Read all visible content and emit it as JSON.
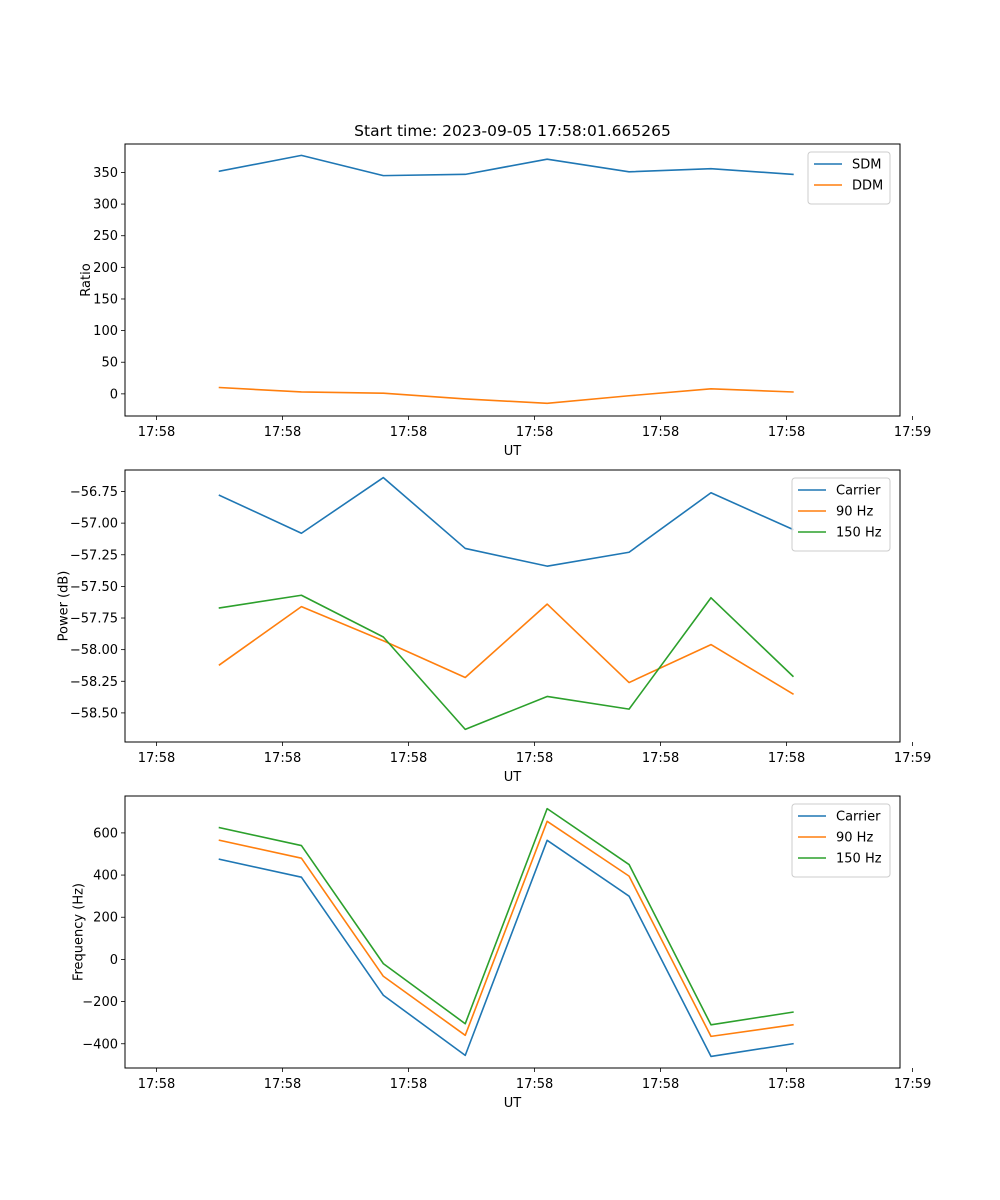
{
  "chart_data": [
    {
      "type": "line",
      "title": "Start time: 2023-09-05 17:58:01.665265",
      "xlabel": "UT",
      "ylabel": "Ratio",
      "xticks": [
        "17:58",
        "17:58",
        "17:58",
        "17:58",
        "17:58",
        "17:58",
        "17:59"
      ],
      "xlim": [
        -0.25,
        5.9
      ],
      "ylim": [
        -35,
        395
      ],
      "yticks": [
        "0",
        "50",
        "100",
        "150",
        "200",
        "250",
        "300",
        "350"
      ],
      "ytick_values": [
        0,
        50,
        100,
        150,
        200,
        250,
        300,
        350
      ],
      "x": [
        0.5,
        1.15,
        1.8,
        2.45,
        3.1,
        3.75,
        4.4,
        5.05
      ],
      "legend_position": "top-right",
      "series": [
        {
          "name": "SDM",
          "color": "#1f77b4",
          "values": [
            352,
            377,
            345,
            347,
            371,
            351,
            356,
            347
          ]
        },
        {
          "name": "DDM",
          "color": "#ff7f0e",
          "values": [
            10,
            3,
            1,
            -8,
            -15,
            -3,
            8,
            3
          ]
        }
      ]
    },
    {
      "type": "line",
      "title": "",
      "xlabel": "UT",
      "ylabel": "Power (dB)",
      "xticks": [
        "17:58",
        "17:58",
        "17:58",
        "17:58",
        "17:58",
        "17:58",
        "17:59"
      ],
      "xlim": [
        -0.25,
        5.9
      ],
      "ylim": [
        -58.73,
        -56.58
      ],
      "yticks": [
        "−58.50",
        "−58.25",
        "−58.00",
        "−57.75",
        "−57.50",
        "−57.25",
        "−57.00",
        "−56.75"
      ],
      "ytick_values": [
        -58.5,
        -58.25,
        -58.0,
        -57.75,
        -57.5,
        -57.25,
        -57.0,
        -56.75
      ],
      "x": [
        0.5,
        1.15,
        1.8,
        2.45,
        3.1,
        3.75,
        4.4,
        5.05
      ],
      "legend_position": "top-right",
      "series": [
        {
          "name": "Carrier",
          "color": "#1f77b4",
          "values": [
            -56.78,
            -57.08,
            -56.64,
            -57.2,
            -57.34,
            -57.23,
            -56.76,
            -57.05
          ]
        },
        {
          "name": "90 Hz",
          "color": "#ff7f0e",
          "values": [
            -58.12,
            -57.66,
            -57.93,
            -58.22,
            -57.64,
            -58.26,
            -57.96,
            -58.35
          ]
        },
        {
          "name": "150 Hz",
          "color": "#2ca02c",
          "values": [
            -57.67,
            -57.57,
            -57.9,
            -58.63,
            -58.37,
            -58.47,
            -57.59,
            -58.21
          ]
        }
      ]
    },
    {
      "type": "line",
      "title": "",
      "xlabel": "UT",
      "ylabel": "Frequency (Hz)",
      "xticks": [
        "17:58",
        "17:58",
        "17:58",
        "17:58",
        "17:58",
        "17:58",
        "17:59"
      ],
      "xlim": [
        -0.25,
        5.9
      ],
      "ylim": [
        -515,
        775
      ],
      "yticks": [
        "−400",
        "−200",
        "0",
        "200",
        "400",
        "600"
      ],
      "ytick_values": [
        -400,
        -200,
        0,
        200,
        400,
        600
      ],
      "x": [
        0.5,
        1.15,
        1.8,
        2.45,
        3.1,
        3.75,
        4.4,
        5.05
      ],
      "legend_position": "top-right",
      "series": [
        {
          "name": "Carrier",
          "color": "#1f77b4",
          "values": [
            475,
            390,
            -170,
            -455,
            565,
            300,
            -460,
            -400
          ]
        },
        {
          "name": "90 Hz",
          "color": "#ff7f0e",
          "values": [
            565,
            480,
            -80,
            -360,
            655,
            395,
            -365,
            -310
          ]
        },
        {
          "name": "150 Hz",
          "color": "#2ca02c",
          "values": [
            625,
            540,
            -20,
            -305,
            715,
            450,
            -310,
            -250
          ]
        }
      ]
    }
  ]
}
